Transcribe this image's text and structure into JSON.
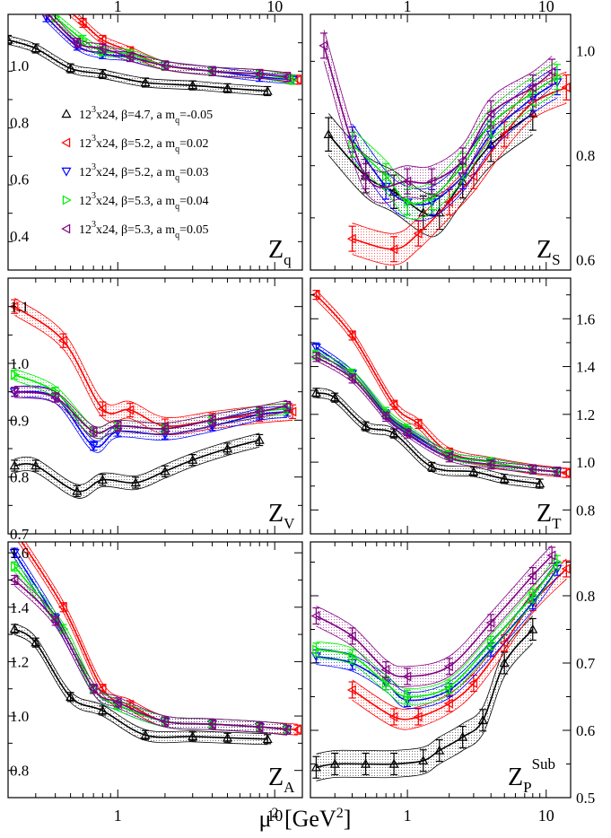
{
  "colors": {
    "beta47": "#000000",
    "beta52a": "#ff0000",
    "beta52b": "#0000ff",
    "beta53a": "#00ee00",
    "beta53b": "#800080"
  },
  "xaxis": {
    "label": "μ² [GeV²]",
    "scale": "log",
    "lim": [
      0.2,
      15
    ],
    "ticks": [
      {
        "value": 1,
        "label": "1"
      },
      {
        "value": 10,
        "label": "10"
      }
    ]
  },
  "legend": [
    {
      "id": "beta47",
      "marker": "triangle-up",
      "text": "12³x24, β=4.7, a m_q=-0.05"
    },
    {
      "id": "beta52a",
      "marker": "triangle-left",
      "text": "12³x24, β=5.2, a m_q=0.02"
    },
    {
      "id": "beta52b",
      "marker": "triangle-down",
      "text": "12³x24, β=5.2, a m_q=0.03"
    },
    {
      "id": "beta53a",
      "marker": "triangle-right",
      "text": "12³x24, β=5.3, a m_q=0.04"
    },
    {
      "id": "beta53b",
      "marker": "triangle-left",
      "text": "12³x24, β=5.3, a m_q=0.05"
    }
  ],
  "chart_data": [
    {
      "type": "line",
      "panel": "Zq",
      "label": "Z_q",
      "yaxis": "left",
      "ylim": [
        0.28,
        1.18
      ],
      "yticks": [
        0.4,
        0.6,
        0.8,
        1.0
      ],
      "ytick_labels": [
        "0.4",
        "0.6",
        "0.8",
        "1.0"
      ],
      "series": [
        {
          "id": "beta47",
          "x": [
            0.2,
            0.3,
            0.5,
            0.8,
            1.5,
            3,
            5,
            9
          ],
          "y": [
            1.09,
            1.06,
            0.99,
            0.97,
            0.94,
            0.93,
            0.92,
            0.91
          ],
          "err": 0.015
        },
        {
          "id": "beta52a",
          "x": [
            0.45,
            0.6,
            0.8,
            1.2,
            2,
            4,
            8,
            14
          ],
          "y": [
            1.21,
            1.15,
            1.09,
            1.05,
            1.0,
            0.98,
            0.97,
            0.95
          ],
          "err": 0.015
        },
        {
          "id": "beta52b",
          "x": [
            0.35,
            0.55,
            0.8,
            1.2,
            2,
            4,
            8,
            13
          ],
          "y": [
            1.17,
            1.07,
            1.04,
            1.03,
            1.0,
            0.98,
            0.96,
            0.95
          ],
          "err": 0.015
        },
        {
          "id": "beta53a",
          "x": [
            0.4,
            0.6,
            0.8,
            1.2,
            2,
            4,
            8,
            13
          ],
          "y": [
            1.17,
            1.09,
            1.05,
            1.04,
            1.0,
            0.98,
            0.97,
            0.95
          ],
          "err": 0.015
        },
        {
          "id": "beta53b",
          "x": [
            0.35,
            0.55,
            0.8,
            1.2,
            2,
            4,
            8,
            12
          ],
          "y": [
            1.19,
            1.08,
            1.06,
            1.03,
            1.0,
            0.98,
            0.97,
            0.96
          ],
          "err": 0.015
        }
      ]
    },
    {
      "type": "line",
      "panel": "ZS",
      "label": "Z_S",
      "yaxis": "right",
      "ylim": [
        0.58,
        1.07
      ],
      "yticks": [
        0.6,
        0.8,
        1.0
      ],
      "ytick_labels": [
        "0.6",
        "0.8",
        "1.0"
      ],
      "series": [
        {
          "id": "beta47",
          "x": [
            0.27,
            0.5,
            0.8,
            1.3,
            1.7,
            2.5,
            4,
            8
          ],
          "y": [
            0.84,
            0.76,
            0.73,
            0.69,
            0.69,
            0.75,
            0.82,
            0.88
          ],
          "err": 0.04
        },
        {
          "id": "beta52a",
          "x": [
            0.4,
            0.8,
            1.2,
            2,
            3,
            5,
            8,
            14
          ],
          "y": [
            0.64,
            0.62,
            0.65,
            0.71,
            0.76,
            0.84,
            0.9,
            0.93
          ],
          "err": 0.03
        },
        {
          "id": "beta52b",
          "x": [
            0.4,
            0.7,
            1.0,
            1.5,
            2.5,
            4,
            8,
            12
          ],
          "y": [
            0.83,
            0.74,
            0.71,
            0.71,
            0.76,
            0.84,
            0.91,
            0.94
          ],
          "err": 0.03
        },
        {
          "id": "beta53a",
          "x": [
            0.4,
            0.7,
            1.0,
            1.5,
            2.5,
            4,
            8,
            12
          ],
          "y": [
            0.82,
            0.76,
            0.71,
            0.72,
            0.78,
            0.86,
            0.92,
            0.95
          ],
          "err": 0.03
        },
        {
          "id": "beta53b",
          "x": [
            0.25,
            0.5,
            1.0,
            1.5,
            2.5,
            4,
            8,
            11
          ],
          "y": [
            1.01,
            0.76,
            0.75,
            0.75,
            0.79,
            0.88,
            0.93,
            0.96
          ],
          "err": 0.03
        }
      ]
    },
    {
      "type": "line",
      "panel": "ZV",
      "label": "Z_V",
      "yaxis": "left",
      "ylim": [
        0.7,
        1.15
      ],
      "yticks": [
        0.7,
        0.8,
        0.9,
        1.0,
        1.1
      ],
      "ytick_labels": [
        "0.7",
        "0.8",
        "0.9",
        "1.0",
        "1.1"
      ],
      "series": [
        {
          "id": "beta47",
          "x": [
            0.22,
            0.3,
            0.55,
            0.8,
            1.3,
            2,
            3,
            5,
            8
          ],
          "y": [
            0.82,
            0.82,
            0.775,
            0.795,
            0.79,
            0.81,
            0.83,
            0.85,
            0.865
          ],
          "err": 0.012
        },
        {
          "id": "beta52a",
          "x": [
            0.22,
            0.45,
            0.8,
            1.2,
            2,
            4,
            8,
            13
          ],
          "y": [
            1.1,
            1.04,
            0.92,
            0.918,
            0.89,
            0.9,
            0.91,
            0.915
          ],
          "err": 0.015
        },
        {
          "id": "beta52b",
          "x": [
            0.22,
            0.4,
            0.7,
            1.0,
            2,
            4,
            8,
            12
          ],
          "y": [
            0.95,
            0.94,
            0.855,
            0.88,
            0.875,
            0.89,
            0.91,
            0.915
          ],
          "err": 0.01
        },
        {
          "id": "beta53a",
          "x": [
            0.22,
            0.4,
            0.7,
            1.0,
            2,
            4,
            8,
            12
          ],
          "y": [
            0.98,
            0.95,
            0.88,
            0.89,
            0.885,
            0.9,
            0.915,
            0.92
          ],
          "err": 0.01
        },
        {
          "id": "beta53b",
          "x": [
            0.22,
            0.4,
            0.7,
            1.0,
            2,
            4,
            8,
            12
          ],
          "y": [
            0.95,
            0.94,
            0.88,
            0.89,
            0.885,
            0.9,
            0.915,
            0.925
          ],
          "err": 0.01
        }
      ]
    },
    {
      "type": "line",
      "panel": "ZT",
      "label": "Z_T",
      "yaxis": "right",
      "ylim": [
        0.7,
        1.77
      ],
      "yticks": [
        0.8,
        1.0,
        1.2,
        1.4,
        1.6
      ],
      "ytick_labels": [
        "0.8",
        "1.0",
        "1.2",
        "1.4",
        "1.6"
      ],
      "series": [
        {
          "id": "beta47",
          "x": [
            0.22,
            0.3,
            0.5,
            0.8,
            1.5,
            3,
            5,
            9
          ],
          "y": [
            1.29,
            1.27,
            1.15,
            1.12,
            0.98,
            0.96,
            0.93,
            0.91
          ],
          "err": 0.02
        },
        {
          "id": "beta52a",
          "x": [
            0.22,
            0.4,
            0.8,
            1.2,
            2,
            4,
            8,
            14
          ],
          "y": [
            1.7,
            1.53,
            1.24,
            1.16,
            1.04,
            1.0,
            0.97,
            0.955
          ],
          "err": 0.02
        },
        {
          "id": "beta52b",
          "x": [
            0.22,
            0.4,
            0.7,
            1.0,
            2,
            4,
            8,
            12
          ],
          "y": [
            1.48,
            1.37,
            1.2,
            1.13,
            1.03,
            1.0,
            0.97,
            0.96
          ],
          "err": 0.015
        },
        {
          "id": "beta53a",
          "x": [
            0.22,
            0.4,
            0.7,
            1.0,
            2,
            4,
            8,
            12
          ],
          "y": [
            1.45,
            1.37,
            1.21,
            1.14,
            1.03,
            1.0,
            0.97,
            0.96
          ],
          "err": 0.015
        },
        {
          "id": "beta53b",
          "x": [
            0.22,
            0.4,
            0.7,
            1.0,
            2,
            4,
            8,
            12
          ],
          "y": [
            1.44,
            1.35,
            1.19,
            1.12,
            1.02,
            0.99,
            0.97,
            0.96
          ],
          "err": 0.015
        }
      ]
    },
    {
      "type": "line",
      "panel": "ZA",
      "label": "Z_A",
      "yaxis": "left",
      "ylim": [
        0.7,
        1.64
      ],
      "yticks": [
        0.8,
        1.0,
        1.2,
        1.4,
        1.6
      ],
      "ytick_labels": [
        "0.8",
        "1.0",
        "1.2",
        "1.4",
        "1.6"
      ],
      "series": [
        {
          "id": "beta47",
          "x": [
            0.22,
            0.3,
            0.5,
            0.8,
            1.5,
            3,
            5,
            9
          ],
          "y": [
            1.32,
            1.27,
            1.07,
            1.02,
            0.93,
            0.925,
            0.92,
            0.915
          ],
          "err": 0.02
        },
        {
          "id": "beta52a",
          "x": [
            0.22,
            0.45,
            0.8,
            1.2,
            2,
            4,
            8,
            14
          ],
          "y": [
            1.68,
            1.4,
            1.1,
            1.04,
            0.98,
            0.97,
            0.96,
            0.95
          ],
          "err": 0.02
        },
        {
          "id": "beta52b",
          "x": [
            0.22,
            0.4,
            0.7,
            1.0,
            2,
            4,
            8,
            12
          ],
          "y": [
            1.6,
            1.36,
            1.1,
            1.04,
            0.98,
            0.97,
            0.96,
            0.95
          ],
          "err": 0.02
        },
        {
          "id": "beta53a",
          "x": [
            0.22,
            0.45,
            0.7,
            1.0,
            2,
            4,
            8,
            12
          ],
          "y": [
            1.55,
            1.32,
            1.1,
            1.04,
            0.98,
            0.97,
            0.96,
            0.95
          ],
          "err": 0.02
        },
        {
          "id": "beta53b",
          "x": [
            0.22,
            0.4,
            0.7,
            1.0,
            2,
            4,
            8,
            12
          ],
          "y": [
            1.5,
            1.35,
            1.1,
            1.05,
            0.98,
            0.97,
            0.96,
            0.95
          ],
          "err": 0.02
        }
      ]
    },
    {
      "type": "line",
      "panel": "ZPsub",
      "label": "Z_P^Sub",
      "yaxis": "right",
      "ylim": [
        0.5,
        0.88
      ],
      "yticks": [
        0.5,
        0.6,
        0.7,
        0.8
      ],
      "ytick_labels": [
        "0.5",
        "0.6",
        "0.7",
        "0.8"
      ],
      "series": [
        {
          "id": "beta47",
          "x": [
            0.22,
            0.3,
            0.5,
            0.8,
            1.3,
            1.7,
            2.5,
            3.5,
            5,
            8
          ],
          "y": [
            0.545,
            0.55,
            0.55,
            0.55,
            0.555,
            0.57,
            0.59,
            0.615,
            0.7,
            0.75
          ],
          "err": 0.02
        },
        {
          "id": "beta52a",
          "x": [
            0.4,
            0.8,
            1.2,
            2,
            3,
            5,
            8,
            14
          ],
          "y": [
            0.66,
            0.62,
            0.62,
            0.64,
            0.67,
            0.73,
            0.79,
            0.84
          ],
          "err": 0.015
        },
        {
          "id": "beta52b",
          "x": [
            0.22,
            0.4,
            0.7,
            1.0,
            2,
            4,
            8,
            12
          ],
          "y": [
            0.71,
            0.7,
            0.67,
            0.645,
            0.66,
            0.72,
            0.79,
            0.84
          ],
          "err": 0.012
        },
        {
          "id": "beta53a",
          "x": [
            0.22,
            0.4,
            0.7,
            1.0,
            2,
            4,
            8,
            12
          ],
          "y": [
            0.72,
            0.71,
            0.67,
            0.65,
            0.665,
            0.73,
            0.8,
            0.85
          ],
          "err": 0.012
        },
        {
          "id": "beta53b",
          "x": [
            0.22,
            0.4,
            0.7,
            1.0,
            2,
            4,
            8,
            11
          ],
          "y": [
            0.77,
            0.74,
            0.69,
            0.68,
            0.695,
            0.76,
            0.83,
            0.86
          ],
          "err": 0.015
        }
      ]
    }
  ]
}
